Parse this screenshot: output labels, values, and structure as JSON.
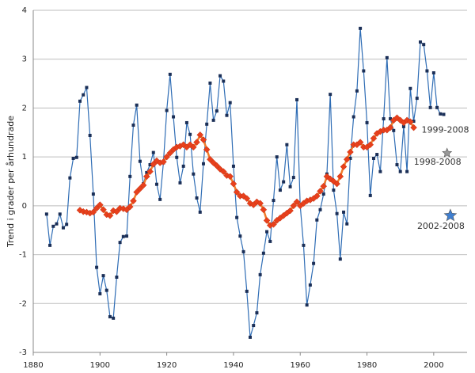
{
  "chart_data": {
    "type": "line",
    "y_label": "Trend i grader per århundrade",
    "xlim": [
      1880,
      2010
    ],
    "xticks": [
      1880,
      1900,
      1920,
      1940,
      1960,
      1980,
      2000
    ],
    "ylim": [
      -3,
      4
    ],
    "yticks": [
      -3,
      -2,
      -1,
      0,
      1,
      2,
      3,
      4
    ],
    "grid": true,
    "series": [
      {
        "color": "#2f6db5",
        "marker": "square",
        "marker_color": "#1b2f57",
        "x": [
          1884,
          1885,
          1886,
          1887,
          1888,
          1889,
          1890,
          1891,
          1892,
          1893,
          1894,
          1895,
          1896,
          1897,
          1898,
          1899,
          1900,
          1901,
          1902,
          1903,
          1904,
          1905,
          1906,
          1907,
          1908,
          1909,
          1910,
          1911,
          1912,
          1913,
          1914,
          1915,
          1916,
          1917,
          1918,
          1919,
          1920,
          1921,
          1922,
          1923,
          1924,
          1925,
          1926,
          1927,
          1928,
          1929,
          1930,
          1931,
          1932,
          1933,
          1934,
          1935,
          1936,
          1937,
          1938,
          1939,
          1940,
          1941,
          1942,
          1943,
          1944,
          1945,
          1946,
          1947,
          1948,
          1949,
          1950,
          1951,
          1952,
          1953,
          1954,
          1955,
          1956,
          1957,
          1958,
          1959,
          1960,
          1961,
          1962,
          1963,
          1964,
          1965,
          1966,
          1967,
          1968,
          1969,
          1970,
          1971,
          1972,
          1973,
          1974,
          1975,
          1976,
          1977,
          1978,
          1979,
          1980,
          1981,
          1982,
          1983,
          1984,
          1985,
          1986,
          1987,
          1988,
          1989,
          1990,
          1991,
          1992,
          1993,
          1994,
          1995,
          1996,
          1997,
          1998,
          1999,
          2000,
          2001,
          2002,
          2003
        ],
        "values": [
          -0.17,
          -0.81,
          -0.42,
          -0.37,
          -0.17,
          -0.45,
          -0.38,
          0.57,
          0.97,
          0.99,
          2.14,
          2.27,
          2.42,
          1.44,
          0.24,
          -1.26,
          -1.8,
          -1.43,
          -1.73,
          -2.27,
          -2.3,
          -1.46,
          -0.75,
          -0.63,
          -0.62,
          0.6,
          1.65,
          2.06,
          0.91,
          0.45,
          0.68,
          0.84,
          1.09,
          0.44,
          0.13,
          0.88,
          1.95,
          2.69,
          1.82,
          0.99,
          0.47,
          0.81,
          1.7,
          1.46,
          0.65,
          0.16,
          -0.13,
          0.86,
          1.67,
          2.51,
          1.75,
          1.94,
          2.66,
          2.55,
          1.85,
          2.11,
          0.81,
          -0.24,
          -0.62,
          -0.94,
          -1.75,
          -2.69,
          -2.45,
          -2.19,
          -1.41,
          -0.97,
          -0.53,
          -0.73,
          0.11,
          1.0,
          0.32,
          0.49,
          1.25,
          0.39,
          0.58,
          2.17,
          0.0,
          -0.81,
          -2.03,
          -1.62,
          -1.18,
          -0.29,
          -0.08,
          0.24,
          0.65,
          2.28,
          0.32,
          -0.16,
          -1.09,
          -0.13,
          -0.37,
          0.97,
          1.82,
          2.35,
          3.63,
          2.76,
          1.7,
          0.21,
          0.97,
          1.05,
          0.7,
          1.78,
          3.03,
          1.78,
          1.54,
          0.84,
          0.7,
          1.62,
          0.7,
          2.4,
          1.73,
          2.2,
          3.35,
          3.3,
          2.76,
          2.01,
          2.72,
          2.01,
          1.88,
          1.87
        ]
      },
      {
        "color": "#f07a2a",
        "marker": "diamond",
        "marker_color": "#e8401c",
        "x": [
          1894,
          1895,
          1896,
          1897,
          1898,
          1899,
          1900,
          1901,
          1902,
          1903,
          1904,
          1905,
          1906,
          1907,
          1908,
          1909,
          1910,
          1911,
          1912,
          1913,
          1914,
          1915,
          1916,
          1917,
          1918,
          1919,
          1920,
          1921,
          1922,
          1923,
          1924,
          1925,
          1926,
          1927,
          1928,
          1929,
          1930,
          1931,
          1932,
          1933,
          1934,
          1935,
          1936,
          1937,
          1938,
          1939,
          1940,
          1941,
          1942,
          1943,
          1944,
          1945,
          1946,
          1947,
          1948,
          1949,
          1950,
          1951,
          1952,
          1953,
          1954,
          1955,
          1956,
          1957,
          1958,
          1959,
          1960,
          1961,
          1962,
          1963,
          1964,
          1965,
          1966,
          1967,
          1968,
          1969,
          1970,
          1971,
          1972,
          1973,
          1974,
          1975,
          1976,
          1977,
          1978,
          1979,
          1980,
          1981,
          1982,
          1983,
          1984,
          1985,
          1986,
          1987,
          1988,
          1989,
          1990,
          1991,
          1992,
          1993,
          1994
        ],
        "values": [
          -0.09,
          -0.12,
          -0.13,
          -0.15,
          -0.13,
          -0.05,
          0.02,
          -0.08,
          -0.18,
          -0.2,
          -0.1,
          -0.12,
          -0.05,
          -0.06,
          -0.08,
          -0.02,
          0.1,
          0.28,
          0.35,
          0.42,
          0.6,
          0.7,
          0.85,
          0.92,
          0.88,
          0.9,
          1.0,
          1.08,
          1.15,
          1.2,
          1.22,
          1.25,
          1.2,
          1.25,
          1.2,
          1.3,
          1.45,
          1.35,
          1.15,
          0.95,
          0.88,
          0.82,
          0.75,
          0.7,
          0.62,
          0.6,
          0.45,
          0.28,
          0.2,
          0.2,
          0.15,
          0.05,
          0.02,
          0.08,
          0.05,
          -0.08,
          -0.3,
          -0.4,
          -0.38,
          -0.3,
          -0.25,
          -0.2,
          -0.15,
          -0.1,
          0.0,
          0.08,
          0.0,
          0.05,
          0.1,
          0.12,
          0.15,
          0.2,
          0.3,
          0.4,
          0.6,
          0.55,
          0.5,
          0.45,
          0.6,
          0.8,
          0.95,
          1.1,
          1.25,
          1.25,
          1.3,
          1.2,
          1.2,
          1.25,
          1.38,
          1.48,
          1.52,
          1.55,
          1.55,
          1.6,
          1.75,
          1.8,
          1.75,
          1.7,
          1.75,
          1.72,
          1.6
        ]
      }
    ],
    "series_label": "1999-2008",
    "stars": [
      {
        "label": "1998-2008",
        "x": 2004,
        "y": 1.08,
        "color": "#999999"
      },
      {
        "label": "2002-2008",
        "x": 2005,
        "y": -0.2,
        "color": "#3f7fd0"
      }
    ]
  }
}
